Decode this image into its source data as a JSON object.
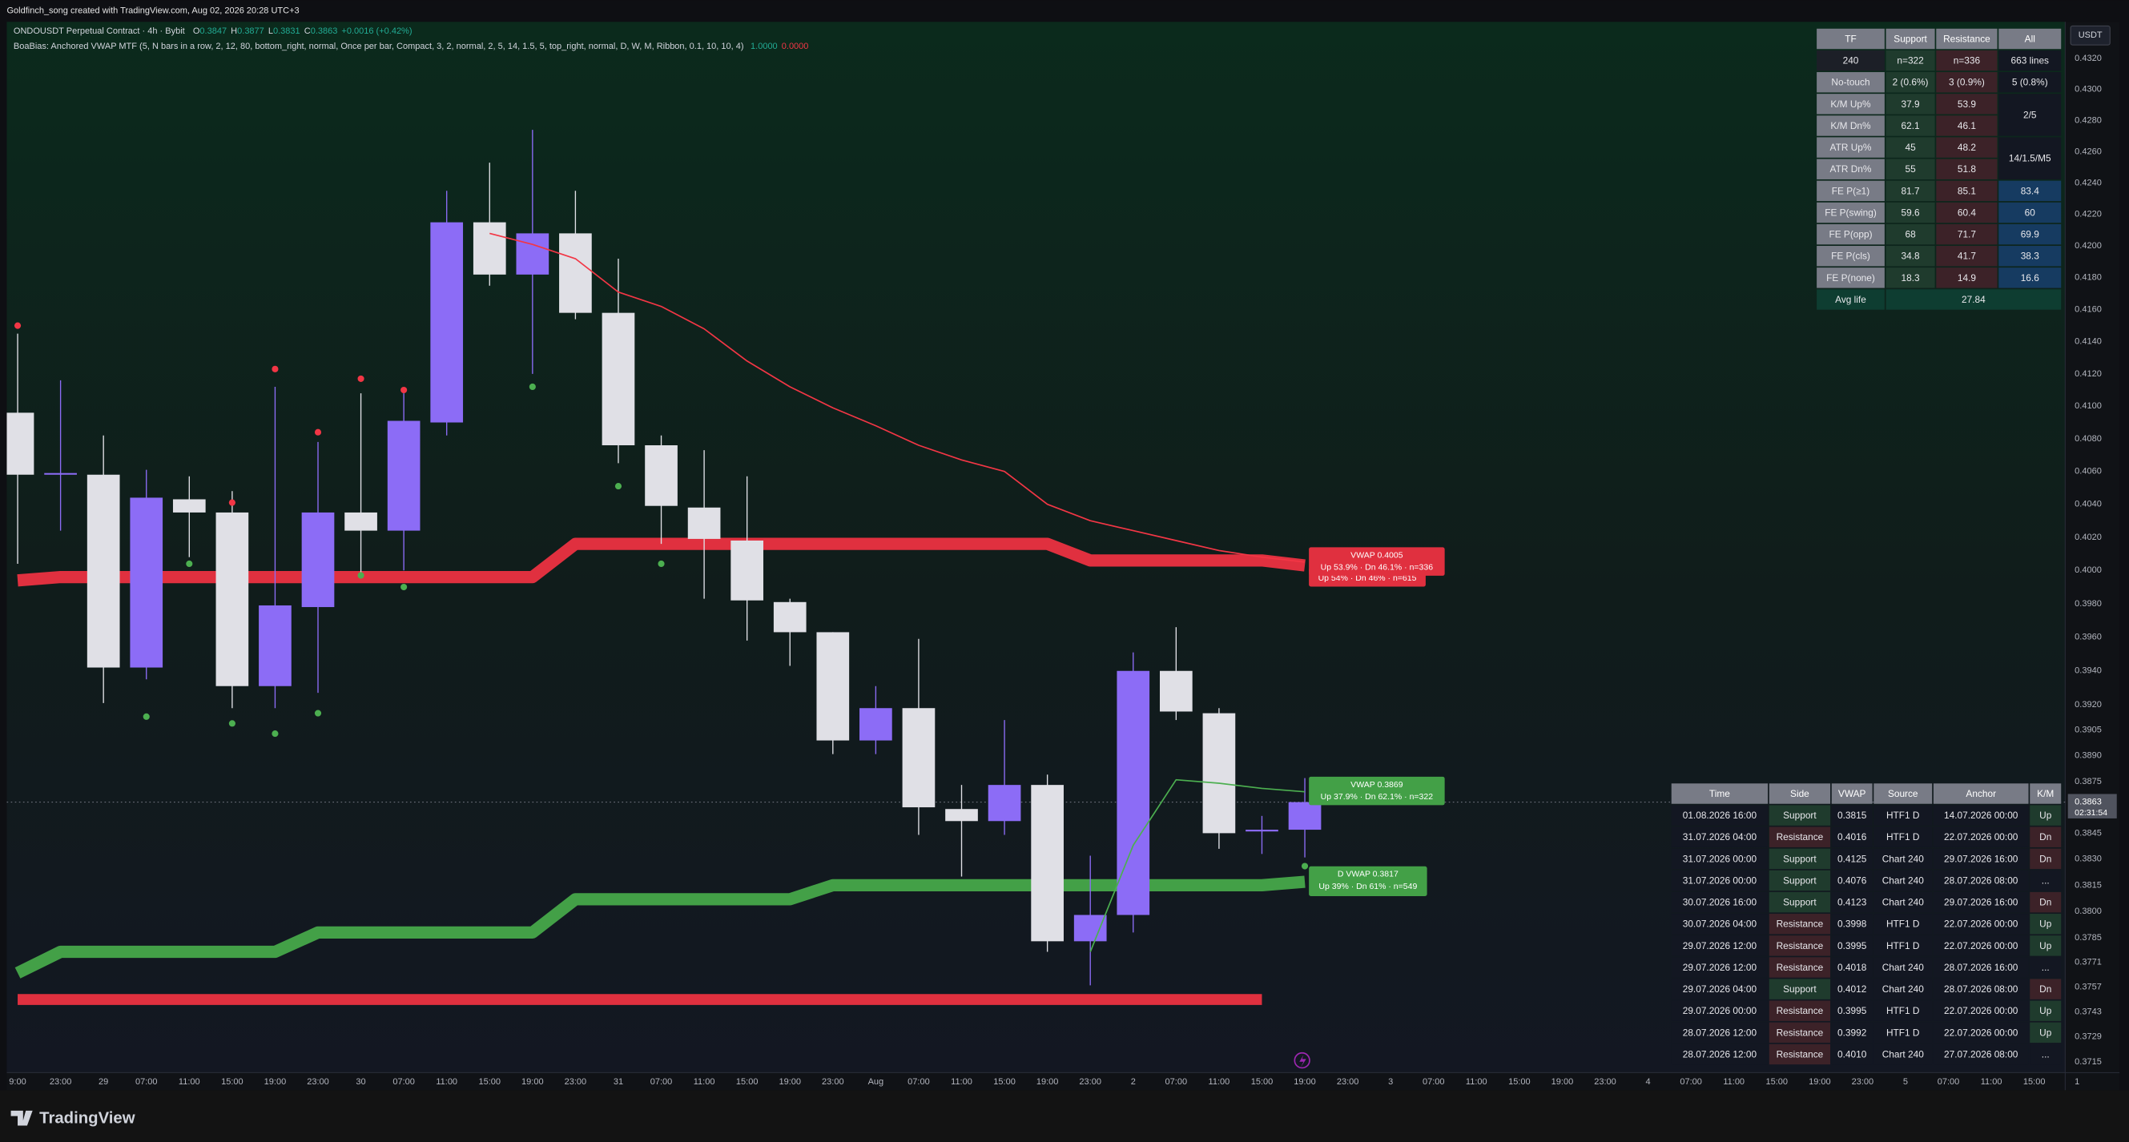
{
  "header": {
    "watermark": "Goldfinch_song created with TradingView.com, Aug 02, 2026 20:28 UTC+3",
    "symbol": "ONDOUSDT Perpetual Contract · 4h · Bybit",
    "ohlc": [
      [
        "O",
        "0.3847"
      ],
      [
        "H",
        "0.3877"
      ],
      [
        "L",
        "0.3831"
      ],
      [
        "C",
        "0.3863"
      ]
    ],
    "change": "+0.0016 (+0.42%)",
    "indicator": "BoaBias: Anchored VWAP MTF (5, N bars in a row, 2, 12, 80, bottom_right, normal, Once per bar, Compact, 3, 2, normal, 2, 5, 14, 1.5, 5, top_right, normal, D, W, M, Ribbon, 0.1, 10, 10, 4)",
    "indicator_values": [
      "1.0000",
      "0.0000"
    ]
  },
  "chart_data": {
    "type": "candlestick",
    "log_scale": true,
    "currency": "USDT",
    "categories": [
      "9:00",
      "23:00",
      "29",
      "07:00",
      "11:00",
      "15:00",
      "19:00",
      "23:00",
      "30",
      "07:00",
      "11:00",
      "15:00",
      "19:00",
      "23:00",
      "31",
      "07:00",
      "11:00",
      "15:00",
      "19:00",
      "23:00",
      "Aug",
      "07:00",
      "11:00",
      "15:00",
      "19:00",
      "23:00",
      "2",
      "07:00",
      "11:00",
      "15:00",
      "19:00",
      "23:00",
      "3",
      "07:00",
      "11:00",
      "15:00",
      "19:00",
      "23:00",
      "4",
      "07:00",
      "11:00",
      "15:00",
      "19:00",
      "23:00",
      "5",
      "07:00",
      "11:00",
      "15:00",
      "1"
    ],
    "open": [
      0.4096,
      0.4058,
      0.4058,
      0.3942,
      0.4043,
      0.4035,
      0.3931,
      0.3978,
      0.4035,
      0.4024,
      0.409,
      0.4215,
      0.4182,
      0.4208,
      0.4158,
      0.4076,
      0.4038,
      0.4018,
      0.3981,
      0.3963,
      0.3899,
      0.3918,
      0.3859,
      0.3852,
      0.3873,
      0.3783,
      0.3798,
      0.394,
      0.3915,
      0.3846,
      0.3847,
      null,
      null,
      null,
      null,
      null,
      null,
      null,
      null,
      null,
      null,
      null,
      null,
      null,
      null,
      null,
      null,
      null,
      null
    ],
    "high": [
      0.4145,
      0.4116,
      0.4082,
      0.4061,
      0.4057,
      0.4048,
      0.4112,
      0.4078,
      0.4108,
      0.4108,
      0.4235,
      0.4253,
      0.4274,
      0.4235,
      0.4192,
      0.4082,
      0.4073,
      0.4057,
      0.3983,
      0.3963,
      0.3931,
      0.3959,
      0.3873,
      0.3911,
      0.3879,
      0.3832,
      0.3951,
      0.3966,
      0.3918,
      0.3855,
      0.3877,
      null,
      null,
      null,
      null,
      null,
      null,
      null,
      null,
      null,
      null,
      null,
      null,
      null,
      null,
      null,
      null,
      null,
      null
    ],
    "low": [
      0.4004,
      0.4024,
      0.3921,
      0.3935,
      0.4008,
      0.3918,
      0.3918,
      0.3927,
      0.3996,
      0.4,
      0.4082,
      0.4175,
      0.412,
      0.4154,
      0.4065,
      0.4016,
      0.3983,
      0.3958,
      0.3943,
      0.3891,
      0.3891,
      0.3844,
      0.382,
      0.3844,
      0.3777,
      0.3758,
      0.3788,
      0.3911,
      0.3836,
      0.3833,
      0.3831,
      null,
      null,
      null,
      null,
      null,
      null,
      null,
      null,
      null,
      null,
      null,
      null,
      null,
      null,
      null,
      null,
      null,
      null
    ],
    "close": [
      0.4058,
      0.4059,
      0.3942,
      0.4044,
      0.4035,
      0.3931,
      0.3979,
      0.4035,
      0.4024,
      0.4091,
      0.4215,
      0.4182,
      0.4208,
      0.4158,
      0.4076,
      0.4039,
      0.4019,
      0.3982,
      0.3963,
      0.3899,
      0.3918,
      0.386,
      0.3852,
      0.3873,
      0.3783,
      0.3798,
      0.394,
      0.3916,
      0.3845,
      0.3847,
      0.3863,
      null,
      null,
      null,
      null,
      null,
      null,
      null,
      null,
      null,
      null,
      null,
      null,
      null,
      null,
      null,
      null,
      null,
      null
    ],
    "up_color": "#8c6cf6",
    "down_color": "#e0e0e6",
    "red_dots": [
      0.415,
      null,
      null,
      null,
      null,
      0.4041,
      0.4123,
      0.4084,
      0.4117,
      0.411,
      null,
      null,
      null,
      null,
      null,
      null,
      null,
      null,
      null,
      null,
      null,
      null,
      null,
      null,
      null,
      null,
      null,
      null,
      null,
      null,
      null,
      null,
      null,
      null,
      null,
      null,
      null,
      null,
      null,
      null,
      null,
      null,
      null,
      null,
      null,
      null,
      null,
      null,
      null
    ],
    "green_dots": [
      null,
      null,
      null,
      0.3913,
      0.4004,
      0.3909,
      0.3903,
      0.3915,
      0.3997,
      0.399,
      null,
      null,
      0.4112,
      null,
      0.4051,
      0.4004,
      null,
      null,
      null,
      null,
      null,
      null,
      null,
      null,
      null,
      null,
      null,
      null,
      null,
      null,
      0.3826,
      null,
      null,
      null,
      null,
      null,
      null,
      null,
      null,
      null,
      null,
      null,
      null,
      null,
      null,
      null,
      null,
      null,
      null
    ],
    "red_dot_color": "#f23645",
    "green_dot_color": "#4caf50",
    "lines": [
      {
        "color": "#e0303f",
        "width": 9,
        "values": [
          0.3994,
          0.3996,
          0.3996,
          0.3996,
          0.3996,
          0.3996,
          0.3996,
          0.3996,
          0.3996,
          0.3996,
          0.3996,
          0.3996,
          0.3996,
          0.4016,
          0.4016,
          0.4016,
          0.4016,
          0.4016,
          0.4016,
          0.4016,
          0.4016,
          0.4016,
          0.4016,
          0.4016,
          0.4016,
          0.4006,
          0.4006,
          0.4006,
          0.4006,
          0.4006,
          0.4003,
          null,
          null,
          null,
          null,
          null,
          null,
          null,
          null,
          null,
          null,
          null,
          null,
          null,
          null,
          null,
          null,
          null,
          null
        ]
      },
      {
        "color": "#43a047",
        "width": 9,
        "values": [
          0.3765,
          0.3777,
          0.3777,
          0.3777,
          0.3777,
          0.3777,
          0.3777,
          0.3788,
          0.3788,
          0.3788,
          0.3788,
          0.3788,
          0.3788,
          0.3807,
          0.3807,
          0.3807,
          0.3807,
          0.3807,
          0.3807,
          0.3815,
          0.3815,
          0.3815,
          0.3815,
          0.3815,
          0.3815,
          0.3815,
          0.3815,
          0.3815,
          0.3815,
          0.3815,
          0.3817,
          null,
          null,
          null,
          null,
          null,
          null,
          null,
          null,
          null,
          null,
          null,
          null,
          null,
          null,
          null,
          null,
          null,
          null
        ]
      },
      {
        "color": "#e0303f",
        "width": 8,
        "values": [
          0.375,
          0.375,
          0.375,
          0.375,
          0.375,
          0.375,
          0.375,
          0.375,
          0.375,
          0.375,
          0.375,
          0.375,
          0.375,
          0.375,
          0.375,
          0.375,
          0.375,
          0.375,
          0.375,
          0.375,
          0.375,
          0.375,
          0.375,
          0.375,
          0.375,
          0.375,
          0.375,
          0.375,
          0.375,
          0.375,
          null,
          null,
          null,
          null,
          null,
          null,
          null,
          null,
          null,
          null,
          null,
          null,
          null,
          null,
          null,
          null,
          null,
          null,
          null
        ]
      },
      {
        "color": "#f23645",
        "width": 1,
        "values": [
          null,
          null,
          null,
          null,
          null,
          null,
          null,
          null,
          null,
          null,
          null,
          0.4208,
          0.4201,
          0.4192,
          0.4171,
          0.4162,
          0.4148,
          0.4128,
          0.4112,
          0.4099,
          0.4088,
          0.4076,
          0.4067,
          0.406,
          0.404,
          0.403,
          0.4024,
          0.4018,
          0.4012,
          0.4008,
          0.4005,
          null,
          null,
          null,
          null,
          null,
          null,
          null,
          null,
          null,
          null,
          null,
          null,
          null,
          null,
          null,
          null,
          null,
          null
        ]
      },
      {
        "color": "#4caf50",
        "width": 1,
        "values": [
          null,
          null,
          null,
          null,
          null,
          null,
          null,
          null,
          null,
          null,
          null,
          null,
          null,
          null,
          null,
          null,
          null,
          null,
          null,
          null,
          null,
          null,
          null,
          null,
          null,
          0.3777,
          0.3838,
          0.3876,
          0.3874,
          0.3871,
          0.3869,
          null,
          null,
          null,
          null,
          null,
          null,
          null,
          null,
          null,
          null,
          null,
          null,
          null,
          null,
          null,
          null,
          null,
          null
        ]
      }
    ],
    "annotations": [
      {
        "color": "#e0303f",
        "lines": [
          "Up 54% · Dn 46% · n=615"
        ]
      },
      {
        "color": "#e0303f",
        "lines": [
          "VWAP 0.4005",
          "Up 53.9% · Dn 46.1% · n=336"
        ]
      },
      {
        "color": "#43a047",
        "lines": [
          "VWAP 0.3869",
          "Up 37.9% · Dn 62.1% · n=322"
        ]
      },
      {
        "color": "#43a047",
        "lines": [
          "D VWAP 0.3817",
          "Up 39% · Dn 61% · n=549"
        ]
      }
    ],
    "ylim": [
      0.3709,
      0.4344
    ],
    "yticks": [
      {
        "value": 0.432,
        "label": "0.4320"
      },
      {
        "value": 0.43,
        "label": "0.4300"
      },
      {
        "value": 0.428,
        "label": "0.4280"
      },
      {
        "value": 0.426,
        "label": "0.4260"
      },
      {
        "value": 0.424,
        "label": "0.4240"
      },
      {
        "value": 0.422,
        "label": "0.4220"
      },
      {
        "value": 0.42,
        "label": "0.4200"
      },
      {
        "value": 0.418,
        "label": "0.4180"
      },
      {
        "value": 0.416,
        "label": "0.4160"
      },
      {
        "value": 0.414,
        "label": "0.4140"
      },
      {
        "value": 0.412,
        "label": "0.4120"
      },
      {
        "value": 0.41,
        "label": "0.4100"
      },
      {
        "value": 0.408,
        "label": "0.4080"
      },
      {
        "value": 0.406,
        "label": "0.4060"
      },
      {
        "value": 0.404,
        "label": "0.4040"
      },
      {
        "value": 0.402,
        "label": "0.4020"
      },
      {
        "value": 0.4,
        "label": "0.4000"
      },
      {
        "value": 0.398,
        "label": "0.3980"
      },
      {
        "value": 0.396,
        "label": "0.3960"
      },
      {
        "value": 0.394,
        "label": "0.3940"
      },
      {
        "value": 0.392,
        "label": "0.3920"
      },
      0.3905,
      {
        "value": 0.389,
        "label": "0.3890"
      },
      0.3875,
      0.3845,
      {
        "value": 0.383,
        "label": "0.3830"
      },
      0.3815,
      {
        "value": 0.38,
        "label": "0.3800"
      },
      0.3785,
      0.3771,
      0.3757,
      0.3743,
      0.3729,
      0.3715
    ],
    "last_price": {
      "value": 0.3863,
      "label": "0.3863"
    },
    "countdown": "02:31:54"
  },
  "stats_table": {
    "header": [
      "TF",
      "Support",
      "Resistance",
      "All"
    ],
    "rows": [
      [
        "240",
        "n=322",
        "n=336",
        "663 lines"
      ],
      [
        "No-touch",
        "2 (0.6%)",
        "3 (0.9%)",
        "5 (0.8%)"
      ],
      [
        "K/M Up%",
        "37.9",
        "53.9"
      ],
      [
        "K/M Dn%",
        "62.1",
        "46.1"
      ],
      [
        "ATR Up%",
        "45",
        "48.2"
      ],
      [
        "ATR Dn%",
        "55",
        "51.8"
      ],
      [
        "FE P(≥1)",
        "81.7",
        "85.1",
        "83.4"
      ],
      [
        "FE P(swing)",
        "59.6",
        "60.4",
        "60"
      ],
      [
        "FE P(opp)",
        "68",
        "71.7",
        "69.9"
      ],
      [
        "FE P(cls)",
        "34.8",
        "41.7",
        "38.3"
      ],
      [
        "FE P(none)",
        "18.3",
        "14.9",
        "16.6"
      ]
    ],
    "merged_all": [
      "2/5",
      "14/1.5/M5"
    ],
    "footer": [
      "Avg life",
      "27.84"
    ]
  },
  "signals_table": {
    "header": [
      "Time",
      "Side",
      "VWAP",
      "Source",
      "Anchor",
      "K/M"
    ],
    "rows": [
      [
        "01.08.2026 16:00",
        "Support",
        "0.3815",
        "HTF1 D",
        "14.07.2026 00:00",
        "Up"
      ],
      [
        "31.07.2026 04:00",
        "Resistance",
        "0.4016",
        "HTF1 D",
        "22.07.2026 00:00",
        "Dn"
      ],
      [
        "31.07.2026 00:00",
        "Support",
        "0.4125",
        "Chart 240",
        "29.07.2026 16:00",
        "Dn"
      ],
      [
        "31.07.2026 00:00",
        "Support",
        "0.4076",
        "Chart 240",
        "28.07.2026 08:00",
        "..."
      ],
      [
        "30.07.2026 16:00",
        "Support",
        "0.4123",
        "Chart 240",
        "29.07.2026 16:00",
        "Dn"
      ],
      [
        "30.07.2026 04:00",
        "Resistance",
        "0.3998",
        "HTF1 D",
        "22.07.2026 00:00",
        "Up"
      ],
      [
        "29.07.2026 12:00",
        "Resistance",
        "0.3995",
        "HTF1 D",
        "22.07.2026 00:00",
        "Up"
      ],
      [
        "29.07.2026 12:00",
        "Resistance",
        "0.4018",
        "Chart 240",
        "28.07.2026 16:00",
        "..."
      ],
      [
        "29.07.2026 04:00",
        "Support",
        "0.4012",
        "Chart 240",
        "28.07.2026 08:00",
        "Dn"
      ],
      [
        "29.07.2026 00:00",
        "Resistance",
        "0.3995",
        "HTF1 D",
        "22.07.2026 00:00",
        "Up"
      ],
      [
        "28.07.2026 12:00",
        "Resistance",
        "0.3992",
        "HTF1 D",
        "22.07.2026 00:00",
        "Up"
      ],
      [
        "28.07.2026 12:00",
        "Resistance",
        "0.4010",
        "Chart 240",
        "27.07.2026 08:00",
        "..."
      ]
    ]
  },
  "brand": "TradingView"
}
